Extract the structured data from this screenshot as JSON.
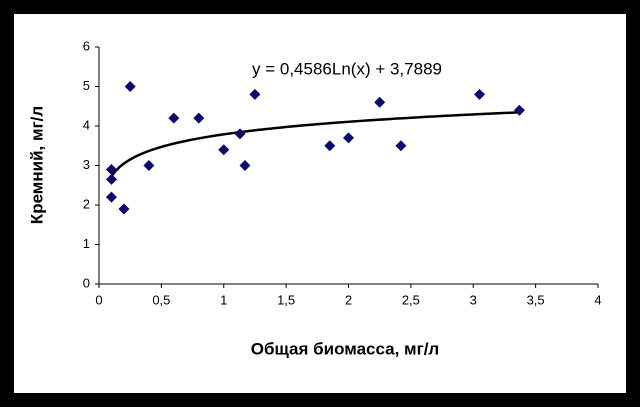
{
  "chart_data": {
    "type": "scatter",
    "xlabel": "Общая биомасса, мг/л",
    "ylabel": "Кремний, мг/л",
    "series": [
      {
        "color": "#0a0a6e",
        "x": [
          0.1,
          0.1,
          0.1,
          0.2,
          0.25,
          0.4,
          0.6,
          0.8,
          1.0,
          1.13,
          1.17,
          1.25,
          1.85,
          2.0,
          2.25,
          2.42,
          3.05,
          3.37
        ],
        "values": [
          2.9,
          2.65,
          2.2,
          1.9,
          5.0,
          3.0,
          4.2,
          4.2,
          3.4,
          3.8,
          3.0,
          4.8,
          3.5,
          3.7,
          4.6,
          3.5,
          4.8,
          4.4
        ]
      }
    ],
    "trendline": {
      "label": "y = 0,4586Ln(x) + 3,7889",
      "a": 0.4586,
      "b": 3.7889
    },
    "xlim": [
      0,
      4
    ],
    "xticks": [
      0,
      {
        "value": 0.5,
        "label": "0,5"
      },
      1,
      {
        "value": 1.5,
        "label": "1,5"
      },
      2,
      {
        "value": 2.5,
        "label": "2,5"
      },
      3,
      {
        "value": 3.5,
        "label": "3,5"
      },
      4
    ],
    "ylim": [
      0,
      6
    ],
    "yticks": [
      0,
      1,
      2,
      3,
      4,
      5,
      6
    ],
    "grid": false
  }
}
